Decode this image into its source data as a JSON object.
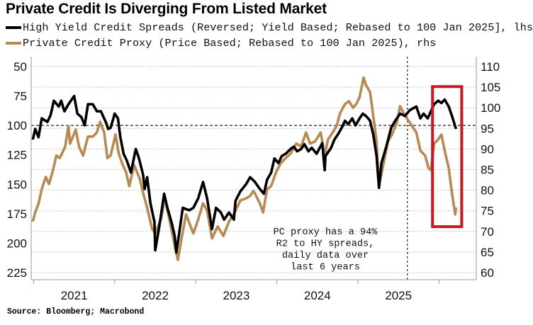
{
  "colors": {
    "hy": "#000000",
    "pc": "#b88a52",
    "highlight": "#c8171e",
    "grid": "#b9b9b9"
  },
  "title": "Private Credit Is Diverging From Listed Market",
  "source": "Source: Bloomberg; Macrobond",
  "chart_data": {
    "type": "line",
    "title": "Private Credit Is Diverging From Listed Market",
    "xlim": [
      2020.97,
      2026.46
    ],
    "x_ticks": [
      2021,
      2022,
      2023,
      2024,
      2025,
      2026
    ],
    "x_tick_labels": [
      {
        "label": "2021",
        "at": 2021.5
      },
      {
        "label": "2022",
        "at": 2022.5
      },
      {
        "label": "2023",
        "at": 2023.5
      },
      {
        "label": "2024",
        "at": 2024.5
      },
      {
        "label": "2025",
        "at": 2025.5
      }
    ],
    "y_left": {
      "ticks": [
        50,
        75,
        100,
        125,
        150,
        175,
        200,
        225
      ],
      "ylim": [
        50,
        225
      ],
      "reversed": true
    },
    "y_right": {
      "ticks": [
        110,
        105,
        100,
        95,
        90,
        85,
        80,
        75,
        70,
        65,
        60
      ],
      "ylim": [
        60,
        110
      ]
    },
    "grid": "horizontal dotted",
    "reference_lines": {
      "horizontal_left": 100,
      "vertical_x": 2025.61
    },
    "legend_placement": "top-left",
    "highlight_box": {
      "x": [
        2025.92,
        2026.28
      ],
      "y_left": [
        67,
        186
      ]
    },
    "annotation": [
      "PC proxy has a 94%",
      "R2 to HY spreads,",
      "daily data over",
      "last 6 years"
    ],
    "series": [
      {
        "name": "High Yield Credit Spreads (Reversed; Yield Based; Rebased to 100 Jan 2025], lhs",
        "axis": "left",
        "points": [
          [
            2020.99,
            112
          ],
          [
            2021.02,
            103
          ],
          [
            2021.06,
            110
          ],
          [
            2021.1,
            94
          ],
          [
            2021.17,
            97
          ],
          [
            2021.21,
            91
          ],
          [
            2021.25,
            79
          ],
          [
            2021.31,
            84
          ],
          [
            2021.34,
            79
          ],
          [
            2021.38,
            88
          ],
          [
            2021.43,
            82
          ],
          [
            2021.5,
            75
          ],
          [
            2021.54,
            90
          ],
          [
            2021.59,
            93
          ],
          [
            2021.63,
            100
          ],
          [
            2021.67,
            82
          ],
          [
            2021.73,
            82
          ],
          [
            2021.78,
            88
          ],
          [
            2021.83,
            88
          ],
          [
            2021.89,
            97
          ],
          [
            2021.92,
            103
          ],
          [
            2021.95,
            102
          ],
          [
            2022.0,
            90
          ],
          [
            2022.04,
            94
          ],
          [
            2022.07,
            110
          ],
          [
            2022.11,
            124
          ],
          [
            2022.15,
            130
          ],
          [
            2022.2,
            140
          ],
          [
            2022.26,
            120
          ],
          [
            2022.3,
            128
          ],
          [
            2022.35,
            142
          ],
          [
            2022.37,
            154
          ],
          [
            2022.4,
            144
          ],
          [
            2022.44,
            166
          ],
          [
            2022.49,
            182
          ],
          [
            2022.5,
            206
          ],
          [
            2022.55,
            186
          ],
          [
            2022.61,
            158
          ],
          [
            2022.65,
            170
          ],
          [
            2022.7,
            182
          ],
          [
            2022.74,
            194
          ],
          [
            2022.76,
            208
          ],
          [
            2022.79,
            194
          ],
          [
            2022.84,
            170
          ],
          [
            2022.92,
            172
          ],
          [
            2022.97,
            170
          ],
          [
            2023.03,
            162
          ],
          [
            2023.09,
            148
          ],
          [
            2023.14,
            162
          ],
          [
            2023.2,
            188
          ],
          [
            2023.25,
            170
          ],
          [
            2023.31,
            174
          ],
          [
            2023.35,
            180
          ],
          [
            2023.41,
            174
          ],
          [
            2023.47,
            180
          ],
          [
            2023.49,
            164
          ],
          [
            2023.55,
            156
          ],
          [
            2023.62,
            150
          ],
          [
            2023.67,
            144
          ],
          [
            2023.73,
            148
          ],
          [
            2023.79,
            154
          ],
          [
            2023.84,
            158
          ],
          [
            2023.88,
            146
          ],
          [
            2023.93,
            140
          ],
          [
            2023.97,
            128
          ],
          [
            2024.02,
            132
          ],
          [
            2024.06,
            126
          ],
          [
            2024.11,
            124
          ],
          [
            2024.17,
            120
          ],
          [
            2024.21,
            118
          ],
          [
            2024.25,
            122
          ],
          [
            2024.3,
            120
          ],
          [
            2024.34,
            116
          ],
          [
            2024.39,
            122
          ],
          [
            2024.43,
            119
          ],
          [
            2024.49,
            124
          ],
          [
            2024.53,
            119
          ],
          [
            2024.56,
            115
          ],
          [
            2024.59,
            138
          ],
          [
            2024.6,
            126
          ],
          [
            2024.67,
            119
          ],
          [
            2024.71,
            112
          ],
          [
            2024.75,
            108
          ],
          [
            2024.8,
            102
          ],
          [
            2024.84,
            96
          ],
          [
            2024.88,
            99
          ],
          [
            2024.93,
            94
          ],
          [
            2024.97,
            100
          ],
          [
            2025.02,
            94
          ],
          [
            2025.06,
            90
          ],
          [
            2025.1,
            92
          ],
          [
            2025.15,
            96
          ],
          [
            2025.19,
            108
          ],
          [
            2025.23,
            126
          ],
          [
            2025.26,
            153
          ],
          [
            2025.29,
            132
          ],
          [
            2025.35,
            118
          ],
          [
            2025.41,
            102
          ],
          [
            2025.46,
            96
          ],
          [
            2025.52,
            90
          ],
          [
            2025.58,
            92
          ],
          [
            2025.64,
            87
          ],
          [
            2025.72,
            84
          ],
          [
            2025.77,
            94
          ],
          [
            2025.81,
            90
          ],
          [
            2025.86,
            94
          ],
          [
            2025.9,
            88
          ],
          [
            2025.94,
            82
          ],
          [
            2025.99,
            79
          ],
          [
            2026.03,
            81
          ],
          [
            2026.07,
            78
          ],
          [
            2026.12,
            84
          ],
          [
            2026.16,
            92
          ],
          [
            2026.21,
            103
          ]
        ]
      },
      {
        "name": "Private Credit Proxy (Price Based; Rebased to 100 Jan 2025), rhs",
        "axis": "right",
        "points": [
          [
            2020.99,
            72.4
          ],
          [
            2021.02,
            74.6
          ],
          [
            2021.06,
            76.7
          ],
          [
            2021.1,
            80.3
          ],
          [
            2021.15,
            83.2
          ],
          [
            2021.19,
            81.5
          ],
          [
            2021.24,
            84.9
          ],
          [
            2021.28,
            88.4
          ],
          [
            2021.32,
            87.8
          ],
          [
            2021.35,
            88.9
          ],
          [
            2021.39,
            90.6
          ],
          [
            2021.43,
            95.6
          ],
          [
            2021.45,
            91.3
          ],
          [
            2021.52,
            94.7
          ],
          [
            2021.56,
            90.6
          ],
          [
            2021.61,
            88.4
          ],
          [
            2021.67,
            93.0
          ],
          [
            2021.73,
            93.0
          ],
          [
            2021.78,
            94.0
          ],
          [
            2021.82,
            96.6
          ],
          [
            2021.87,
            94.0
          ],
          [
            2021.91,
            87.8
          ],
          [
            2021.95,
            88.4
          ],
          [
            2022.01,
            93.5
          ],
          [
            2022.05,
            88.9
          ],
          [
            2022.09,
            86.6
          ],
          [
            2022.14,
            84.4
          ],
          [
            2022.18,
            81.0
          ],
          [
            2022.24,
            86.1
          ],
          [
            2022.31,
            82.7
          ],
          [
            2022.36,
            78.6
          ],
          [
            2022.4,
            75.8
          ],
          [
            2022.46,
            70.7
          ],
          [
            2022.5,
            69.5
          ],
          [
            2022.57,
            72.9
          ],
          [
            2022.62,
            78.0
          ],
          [
            2022.68,
            72.4
          ],
          [
            2022.74,
            66.5
          ],
          [
            2022.78,
            63.1
          ],
          [
            2022.83,
            68.9
          ],
          [
            2022.88,
            74.1
          ],
          [
            2022.97,
            69.5
          ],
          [
            2023.03,
            72.9
          ],
          [
            2023.09,
            76.8
          ],
          [
            2023.14,
            75.1
          ],
          [
            2023.2,
            68.3
          ],
          [
            2023.27,
            71.2
          ],
          [
            2023.34,
            68.9
          ],
          [
            2023.41,
            72.4
          ],
          [
            2023.48,
            74.6
          ],
          [
            2023.55,
            77.5
          ],
          [
            2023.62,
            78.0
          ],
          [
            2023.67,
            78.6
          ],
          [
            2023.71,
            79.8
          ],
          [
            2023.73,
            79.2
          ],
          [
            2023.79,
            76.8
          ],
          [
            2023.83,
            74.6
          ],
          [
            2023.88,
            80.3
          ],
          [
            2023.93,
            81.0
          ],
          [
            2023.99,
            84.4
          ],
          [
            2024.05,
            86.6
          ],
          [
            2024.11,
            87.8
          ],
          [
            2024.17,
            88.9
          ],
          [
            2024.24,
            91.3
          ],
          [
            2024.3,
            90.6
          ],
          [
            2024.36,
            94.0
          ],
          [
            2024.41,
            91.3
          ],
          [
            2024.47,
            91.8
          ],
          [
            2024.54,
            94.0
          ],
          [
            2024.59,
            88.4
          ],
          [
            2024.63,
            92.3
          ],
          [
            2024.69,
            94.0
          ],
          [
            2024.74,
            95.7
          ],
          [
            2024.78,
            98.7
          ],
          [
            2024.84,
            100.9
          ],
          [
            2024.89,
            101.6
          ],
          [
            2024.94,
            100.0
          ],
          [
            2024.98,
            100.9
          ],
          [
            2025.02,
            102.6
          ],
          [
            2025.07,
            107.3
          ],
          [
            2025.1,
            105.5
          ],
          [
            2025.15,
            103.8
          ],
          [
            2025.17,
            100.9
          ],
          [
            2025.2,
            96.4
          ],
          [
            2025.23,
            91.8
          ],
          [
            2025.26,
            81.0
          ],
          [
            2025.3,
            84.9
          ],
          [
            2025.37,
            91.8
          ],
          [
            2025.42,
            93.5
          ],
          [
            2025.48,
            96.4
          ],
          [
            2025.52,
            100.4
          ],
          [
            2025.58,
            98.1
          ],
          [
            2025.64,
            96.4
          ],
          [
            2025.72,
            94.0
          ],
          [
            2025.77,
            89.6
          ],
          [
            2025.83,
            88.4
          ],
          [
            2025.87,
            85.4
          ],
          [
            2025.9,
            84.9
          ],
          [
            2025.94,
            91.3
          ],
          [
            2025.99,
            92.3
          ],
          [
            2026.03,
            93.5
          ],
          [
            2026.07,
            89.6
          ],
          [
            2026.12,
            85.4
          ],
          [
            2026.16,
            79.2
          ],
          [
            2026.2,
            74.1
          ],
          [
            2026.21,
            75.8
          ]
        ]
      }
    ]
  }
}
